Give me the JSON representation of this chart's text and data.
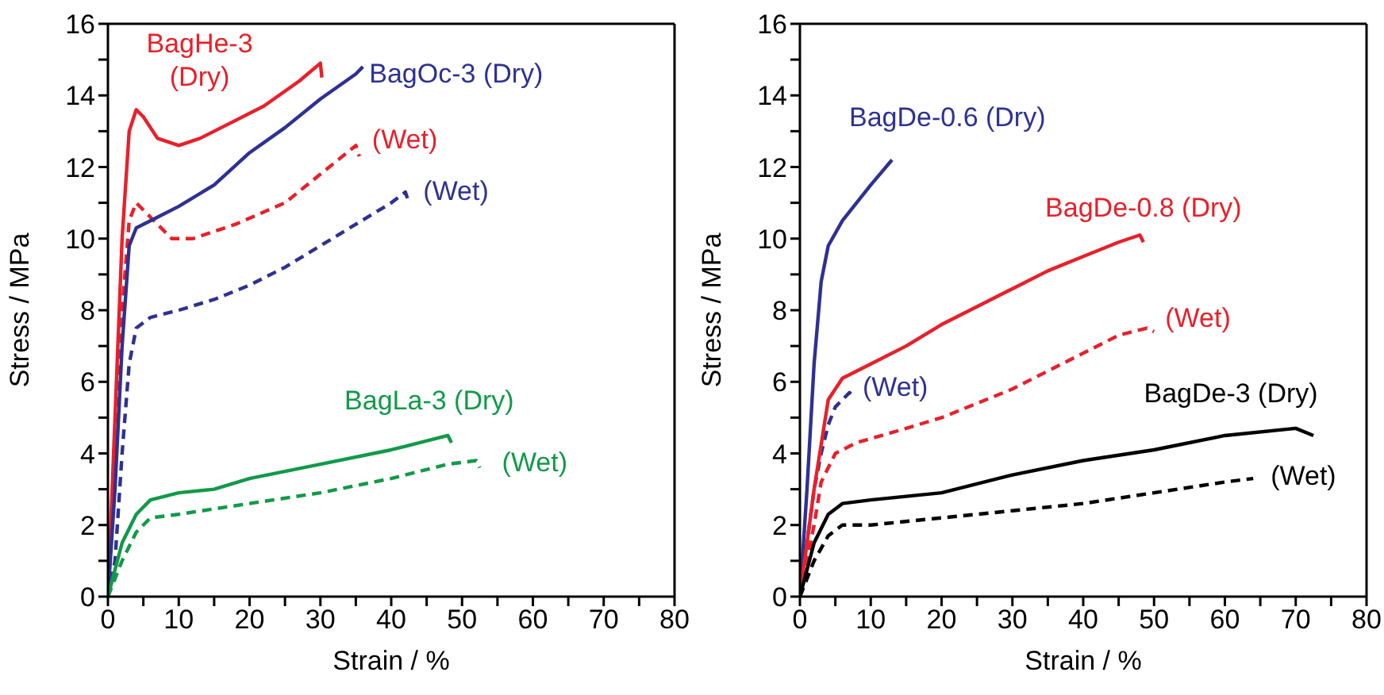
{
  "chart_data": [
    {
      "type": "line",
      "xlabel": "Strain / %",
      "ylabel": "Stress / MPa",
      "marker": "none",
      "xlim": [
        0,
        80
      ],
      "ylim": [
        0,
        16
      ],
      "xticks": [
        0,
        {
          "value": 5,
          "label": null
        },
        10,
        {
          "value": 15,
          "label": null
        },
        20,
        {
          "value": 25,
          "label": null
        },
        30,
        {
          "value": 35,
          "label": null
        },
        40,
        {
          "value": 45,
          "label": null
        },
        50,
        {
          "value": 55,
          "label": null
        },
        60,
        {
          "value": 65,
          "label": null
        },
        70,
        {
          "value": 75,
          "label": null
        },
        80
      ],
      "yticks": [
        0,
        {
          "value": 1,
          "label": null
        },
        2,
        {
          "value": 3,
          "label": null
        },
        4,
        {
          "value": 5,
          "label": null
        },
        6,
        {
          "value": 7,
          "label": null
        },
        8,
        {
          "value": 9,
          "label": null
        },
        10,
        {
          "value": 11,
          "label": null
        },
        12,
        {
          "value": 13,
          "label": null
        },
        14,
        {
          "value": 15,
          "label": null
        },
        16
      ],
      "series": [
        {
          "name": "BagHe-3 (Dry)",
          "color": "#e8202a",
          "line_style": "solid",
          "x": [
            0,
            1,
            2,
            3,
            4,
            5,
            7,
            10,
            13,
            17,
            22,
            27,
            30,
            30.2
          ],
          "values": [
            0,
            5,
            10,
            13,
            13.6,
            13.4,
            12.8,
            12.6,
            12.8,
            13.2,
            13.7,
            14.4,
            14.9,
            14.5
          ]
        },
        {
          "name": "(Wet)",
          "color": "#e8202a",
          "line_style": "dashed",
          "x": [
            0,
            1,
            2,
            3,
            4,
            6,
            9,
            12,
            18,
            25,
            30,
            35,
            35.5
          ],
          "values": [
            0,
            4,
            8,
            10.5,
            11,
            10.6,
            10,
            10,
            10.4,
            11,
            11.8,
            12.6,
            12.3
          ]
        },
        {
          "name": "BagOc-3 (Dry)",
          "color": "#2e3192",
          "line_style": "solid",
          "x": [
            0,
            1,
            2,
            3,
            4,
            7,
            10,
            15,
            20,
            25,
            30,
            35,
            36
          ],
          "values": [
            0,
            3,
            7,
            9.8,
            10.3,
            10.6,
            10.9,
            11.5,
            12.4,
            13.1,
            13.9,
            14.6,
            14.8
          ]
        },
        {
          "name": "(Wet)",
          "color": "#2e3192",
          "line_style": "dashed",
          "x": [
            0,
            1,
            2,
            3,
            4,
            6,
            10,
            15,
            20,
            25,
            30,
            35,
            40,
            42,
            42.5
          ],
          "values": [
            0,
            1,
            4,
            6.5,
            7.5,
            7.8,
            8,
            8.3,
            8.7,
            9.2,
            9.8,
            10.4,
            11,
            11.3,
            11
          ]
        },
        {
          "name": "BagLa-3 (Dry)",
          "color": "#119a48",
          "line_style": "solid",
          "x": [
            0,
            2,
            4,
            6,
            10,
            15,
            20,
            30,
            40,
            48,
            48.5
          ],
          "values": [
            0,
            1.5,
            2.3,
            2.7,
            2.9,
            3,
            3.3,
            3.7,
            4.1,
            4.5,
            4.3
          ]
        },
        {
          "name": "(Wet)",
          "color": "#119a48",
          "line_style": "dashed",
          "x": [
            0,
            2,
            4,
            6,
            10,
            20,
            30,
            40,
            48,
            52,
            52.5
          ],
          "values": [
            0,
            1,
            1.8,
            2.2,
            2.3,
            2.6,
            2.9,
            3.3,
            3.7,
            3.8,
            3.6
          ]
        }
      ]
    },
    {
      "type": "line",
      "xlabel": "Strain / %",
      "ylabel": "Stress / MPa",
      "marker": "none",
      "xlim": [
        0,
        80
      ],
      "ylim": [
        0,
        16
      ],
      "xticks": [
        0,
        {
          "value": 5,
          "label": null
        },
        10,
        {
          "value": 15,
          "label": null
        },
        20,
        {
          "value": 25,
          "label": null
        },
        30,
        {
          "value": 35,
          "label": null
        },
        40,
        {
          "value": 45,
          "label": null
        },
        50,
        {
          "value": 55,
          "label": null
        },
        60,
        {
          "value": 65,
          "label": null
        },
        70,
        {
          "value": 75,
          "label": null
        },
        80
      ],
      "yticks": [
        0,
        {
          "value": 1,
          "label": null
        },
        2,
        {
          "value": 3,
          "label": null
        },
        4,
        {
          "value": 5,
          "label": null
        },
        6,
        {
          "value": 7,
          "label": null
        },
        8,
        {
          "value": 9,
          "label": null
        },
        10,
        {
          "value": 11,
          "label": null
        },
        12,
        {
          "value": 13,
          "label": null
        },
        14,
        {
          "value": 15,
          "label": null
        },
        16
      ],
      "series": [
        {
          "name": "BagDe-0.6 (Dry)",
          "color": "#2e3192",
          "line_style": "solid",
          "x": [
            0,
            1,
            2,
            3,
            4,
            6,
            8,
            10,
            13
          ],
          "values": [
            0,
            3,
            6.5,
            8.8,
            9.8,
            10.5,
            11,
            11.5,
            12.2
          ]
        },
        {
          "name": "(Wet)",
          "color": "#2e3192",
          "line_style": "dashed",
          "x": [
            0,
            1,
            2,
            3,
            4,
            5,
            7,
            7.5
          ],
          "values": [
            0,
            1.5,
            3,
            4,
            4.8,
            5.3,
            5.7,
            5.6
          ]
        },
        {
          "name": "BagDe-0.8 (Dry)",
          "color": "#e8202a",
          "line_style": "solid",
          "x": [
            0,
            2,
            4,
            6,
            10,
            15,
            20,
            25,
            30,
            35,
            40,
            45,
            48,
            48.5
          ],
          "values": [
            0,
            3,
            5.5,
            6.1,
            6.5,
            7,
            7.6,
            8.1,
            8.6,
            9.1,
            9.5,
            9.9,
            10.1,
            9.9
          ]
        },
        {
          "name": "(Wet)",
          "color": "#e8202a",
          "line_style": "dashed",
          "x": [
            0,
            1,
            2,
            3,
            5,
            8,
            15,
            20,
            25,
            30,
            35,
            40,
            45,
            49,
            50
          ],
          "values": [
            0,
            1,
            2,
            3.2,
            4,
            4.3,
            4.7,
            5,
            5.4,
            5.8,
            6.3,
            6.8,
            7.3,
            7.5,
            7.4
          ]
        },
        {
          "name": "BagDe-3 (Dry)",
          "color": "#000000",
          "line_style": "solid",
          "x": [
            0,
            2,
            4,
            6,
            10,
            20,
            30,
            40,
            50,
            60,
            70,
            72.5
          ],
          "values": [
            0,
            1.5,
            2.3,
            2.6,
            2.7,
            2.9,
            3.4,
            3.8,
            4.1,
            4.5,
            4.7,
            4.5
          ]
        },
        {
          "name": "(Wet)",
          "color": "#000000",
          "line_style": "dashed",
          "x": [
            0,
            2,
            4,
            6,
            10,
            20,
            30,
            40,
            50,
            60,
            64
          ],
          "values": [
            0,
            1,
            1.7,
            2,
            2,
            2.2,
            2.4,
            2.6,
            2.9,
            3.2,
            3.3
          ]
        }
      ]
    }
  ]
}
